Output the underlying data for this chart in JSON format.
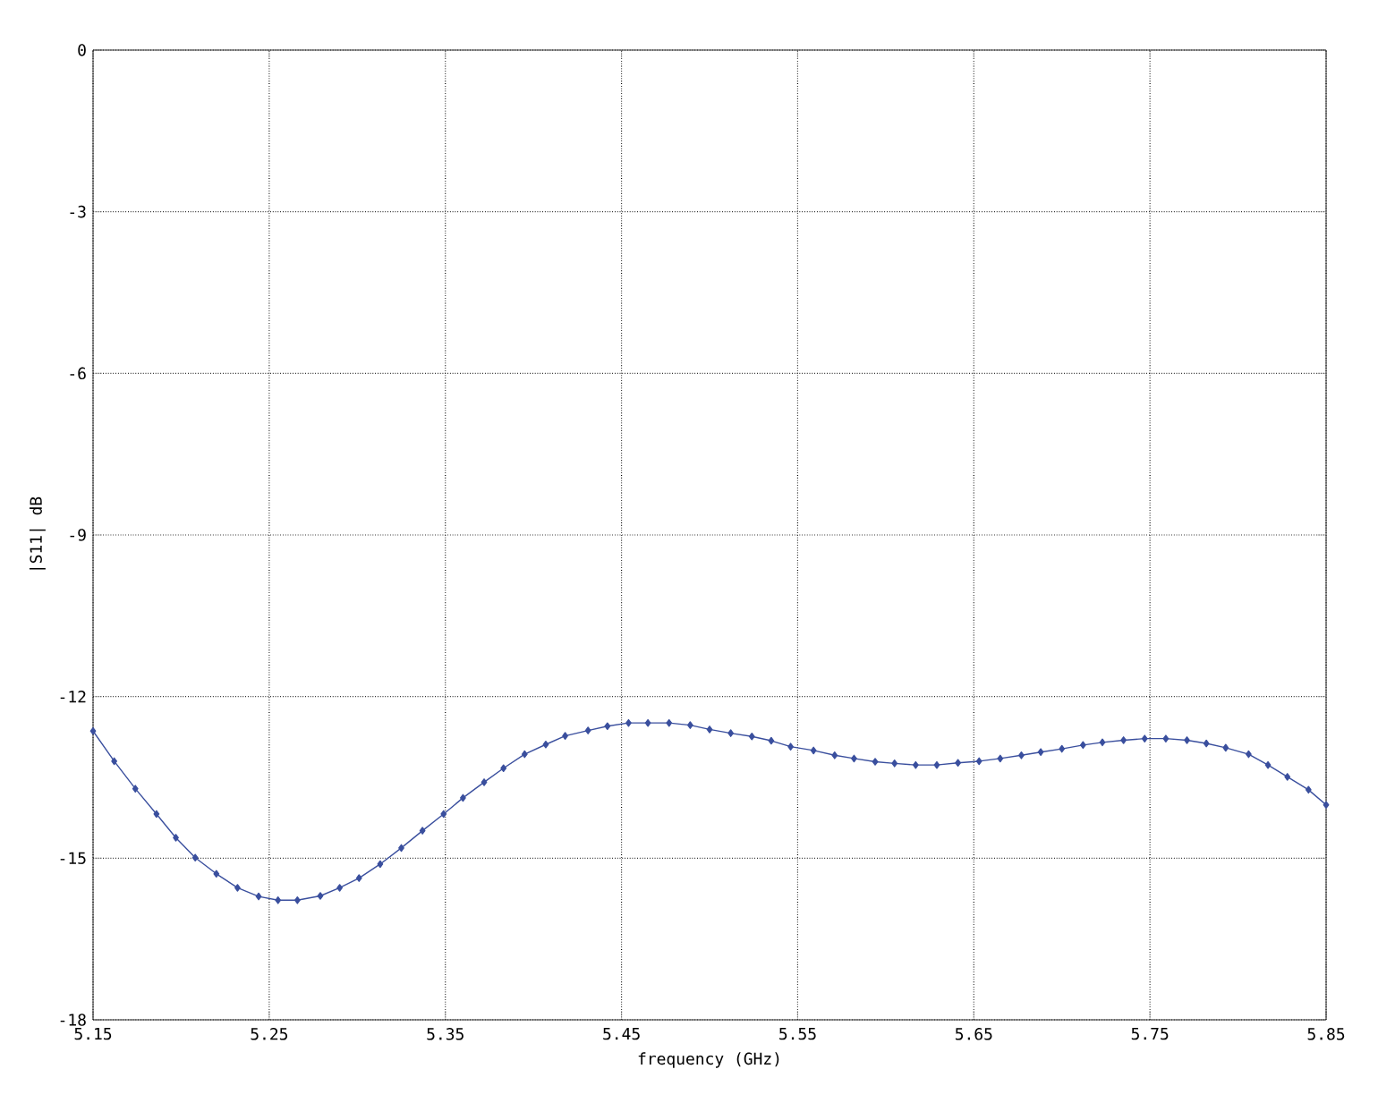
{
  "chart_data": {
    "type": "line",
    "xlabel": "frequency (GHz)",
    "ylabel": "|S11| dB",
    "xlim": [
      5.15,
      5.85
    ],
    "ylim": [
      -18,
      0
    ],
    "xticks": [
      5.15,
      5.25,
      5.35,
      5.45,
      5.55,
      5.65,
      5.75,
      5.85
    ],
    "yticks": [
      -18,
      -15,
      -12,
      -9,
      -6,
      -3,
      0
    ],
    "grid": true,
    "marker": "diamond",
    "line_style": "solid",
    "series": [
      {
        "color": "#3a4f9e",
        "x": [
          5.15,
          5.162,
          5.174,
          5.186,
          5.197,
          5.208,
          5.22,
          5.232,
          5.244,
          5.255,
          5.266,
          5.279,
          5.29,
          5.301,
          5.313,
          5.325,
          5.337,
          5.349,
          5.36,
          5.372,
          5.383,
          5.395,
          5.407,
          5.418,
          5.431,
          5.442,
          5.454,
          5.465,
          5.477,
          5.489,
          5.5,
          5.512,
          5.524,
          5.535,
          5.546,
          5.559,
          5.571,
          5.582,
          5.594,
          5.605,
          5.617,
          5.629,
          5.641,
          5.653,
          5.665,
          5.677,
          5.688,
          5.7,
          5.712,
          5.723,
          5.735,
          5.747,
          5.759,
          5.771,
          5.782,
          5.793,
          5.806,
          5.817,
          5.828,
          5.84,
          5.85
        ],
        "values": [
          -12.64,
          -13.2,
          -13.71,
          -14.18,
          -14.62,
          -14.99,
          -15.29,
          -15.55,
          -15.71,
          -15.78,
          -15.78,
          -15.7,
          -15.55,
          -15.37,
          -15.11,
          -14.81,
          -14.49,
          -14.18,
          -13.88,
          -13.59,
          -13.33,
          -13.07,
          -12.89,
          -12.73,
          -12.63,
          -12.55,
          -12.49,
          -12.49,
          -12.49,
          -12.53,
          -12.61,
          -12.68,
          -12.74,
          -12.82,
          -12.93,
          -13.0,
          -13.09,
          -13.15,
          -13.21,
          -13.24,
          -13.27,
          -13.27,
          -13.23,
          -13.2,
          -13.15,
          -13.09,
          -13.03,
          -12.97,
          -12.9,
          -12.85,
          -12.81,
          -12.78,
          -12.78,
          -12.81,
          -12.87,
          -12.95,
          -13.07,
          -13.27,
          -13.49,
          -13.73,
          -14.01
        ]
      }
    ]
  }
}
